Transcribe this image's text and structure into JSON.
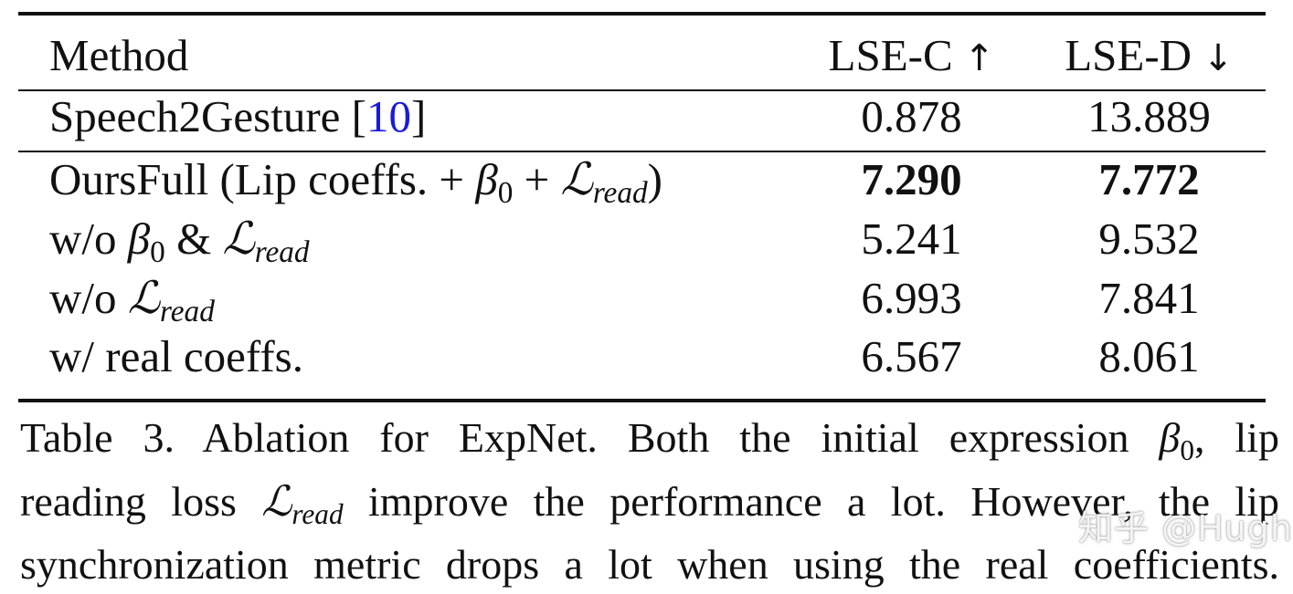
{
  "table": {
    "headers": {
      "method": "Method",
      "lse_c": "LSE-C",
      "lse_c_arrow": "↑",
      "lse_d": "LSE-D",
      "lse_d_arrow": "↓"
    },
    "rows": [
      {
        "method_prefix": "Speech2Gesture [",
        "citation": "10",
        "method_suffix": "]",
        "lse_c": "0.878",
        "lse_d": "13.889"
      },
      {
        "method_prefix": "OursFull (Lip coeffs. + ",
        "beta": "β",
        "beta_sub": "0",
        "method_mid": " + ",
        "loss": "ℒ",
        "loss_sub": "read",
        "method_suffix": ")",
        "lse_c": "7.290",
        "lse_d": "7.772",
        "bold": true
      },
      {
        "method_prefix": "w/o ",
        "beta": "β",
        "beta_sub": "0",
        "method_mid": " & ",
        "loss": "ℒ",
        "loss_sub": "read",
        "lse_c": "5.241",
        "lse_d": "9.532"
      },
      {
        "method_prefix": "w/o ",
        "loss": "ℒ",
        "loss_sub": "read",
        "lse_c": "6.993",
        "lse_d": "7.841"
      },
      {
        "method_prefix": "w/ real coeffs.",
        "lse_c": "6.567",
        "lse_d": "8.061"
      }
    ]
  },
  "caption": {
    "line1_text": "Table 3. Ablation for ExpNet. Both the initial expression ",
    "line1_beta": "β",
    "line1_beta_sub": "0",
    "line1_end": ", lip",
    "line2_start": "reading loss ",
    "line2_loss": "ℒ",
    "line2_loss_sub": "read",
    "line2_end": " improve the performance a lot. However, the lip",
    "line3": "synchronization metric drops a lot when using the real coefficients."
  },
  "watermark": "知乎 @Hugh"
}
